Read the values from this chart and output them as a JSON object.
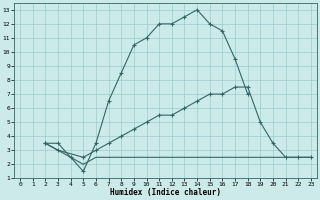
{
  "xlabel": "Humidex (Indice chaleur)",
  "bg_color": "#cceaea",
  "line_color": "#336666",
  "grid_color": "#99cccc",
  "xlim": [
    -0.5,
    23.5
  ],
  "ylim": [
    1,
    13.5
  ],
  "xticks": [
    0,
    1,
    2,
    3,
    4,
    5,
    6,
    7,
    8,
    9,
    10,
    11,
    12,
    13,
    14,
    15,
    16,
    17,
    18,
    19,
    20,
    21,
    22,
    23
  ],
  "yticks": [
    1,
    2,
    3,
    4,
    5,
    6,
    7,
    8,
    9,
    10,
    11,
    12,
    13
  ],
  "line1_x": [
    2,
    3,
    4,
    5,
    6,
    7,
    8,
    9,
    10,
    11,
    12,
    13,
    14,
    15,
    16,
    17,
    18
  ],
  "line1_y": [
    3.5,
    3.5,
    2.5,
    1.5,
    3.5,
    6.5,
    8.5,
    10.5,
    11.0,
    12.0,
    12.0,
    12.5,
    13.0,
    12.0,
    11.5,
    9.5,
    7.0
  ],
  "line2_x": [
    2,
    3,
    5,
    6,
    7,
    8,
    9,
    10,
    11,
    12,
    13,
    14,
    15,
    16,
    17,
    18,
    19,
    20,
    21,
    22,
    23
  ],
  "line2_y": [
    3.5,
    3.0,
    2.5,
    3.0,
    3.5,
    4.0,
    4.5,
    5.0,
    5.5,
    5.5,
    6.0,
    6.5,
    7.0,
    7.0,
    7.5,
    7.5,
    5.0,
    3.5,
    2.5,
    2.5,
    2.5
  ],
  "line3_x": [
    2,
    3,
    4,
    5,
    6,
    7,
    8,
    9,
    10,
    11,
    12,
    13,
    14,
    15,
    16,
    17,
    18,
    19,
    20,
    21,
    22,
    23
  ],
  "line3_y": [
    3.5,
    3.0,
    2.5,
    2.0,
    2.5,
    2.5,
    2.5,
    2.5,
    2.5,
    2.5,
    2.5,
    2.5,
    2.5,
    2.5,
    2.5,
    2.5,
    2.5,
    2.5,
    2.5,
    2.5,
    2.5,
    2.5
  ]
}
